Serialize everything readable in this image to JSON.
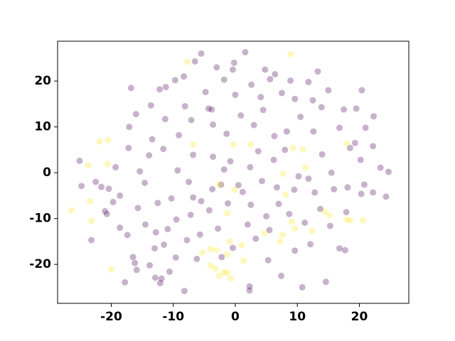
{
  "chart_data": {
    "type": "scatter",
    "xlim": [
      -28.65,
      27.97
    ],
    "ylim": [
      -28.5,
      28.7
    ],
    "xticks": [
      -20,
      -10,
      0,
      10,
      20
    ],
    "yticks": [
      -20,
      -10,
      0,
      10,
      20
    ],
    "alpha": 0.3,
    "series": [
      {
        "color": "#440154",
        "x": [
          -25.1,
          -24.8,
          -23.2,
          -17.8,
          -21.6,
          -20.4,
          -21,
          -19.7,
          -18.6,
          -17.4,
          -16.2,
          -16.5,
          -12.9,
          -11.9,
          -12.1,
          -10.6,
          -8.2,
          -13.8,
          -15.9,
          -13,
          -11.5,
          -17.1,
          -16,
          -16.8,
          -13.6,
          -12.2,
          -11.2,
          -9.7,
          -8.3,
          -6.5,
          -5.5,
          -3,
          -0.4,
          -0.2,
          0,
          2.6,
          4.8,
          6.4,
          7.5,
          8.9,
          11.8,
          12.5,
          15,
          17.5,
          19.5,
          20.4,
          22.3,
          21,
          19.3,
          18.5,
          20.2,
          22.2,
          23.4,
          24.7,
          24.3,
          22.2,
          20.3,
          18.1,
          15.9,
          13.7,
          15.3,
          16.8,
          17.7,
          14.6,
          10.8,
          7.4,
          5.3,
          2.3,
          2.3,
          -0.4,
          -2.8,
          -5.7,
          -7.8,
          -9.5,
          -12.5,
          -14.6,
          -15.4,
          -13.9,
          -11.6,
          -9.1,
          -7.1,
          -4.3,
          -3.6,
          -1.4,
          0.9,
          3,
          4.5,
          6.3,
          8.3,
          10.5,
          12.6,
          14,
          11.8,
          9.5,
          7,
          5,
          2.5,
          0.5,
          -1.8,
          -3.7,
          -5.5,
          -7.5,
          -9.3,
          -10.3,
          -6.8,
          -3.6,
          -0.8,
          2.4,
          4.3,
          6.2,
          8,
          10.2,
          12.8,
          15.5,
          16.8,
          13.9,
          9.6,
          4.1,
          -4.8,
          -8.1,
          -11.3,
          -13.4,
          -17.2,
          -19.3,
          -20.7,
          -18.6,
          -14.5,
          -10.9,
          -7.2,
          -4.2,
          -1.2,
          2,
          5.5,
          8.7,
          11.2,
          12.1,
          9.6,
          3.3,
          -2.2,
          -6.2,
          -9.6,
          -12.8,
          13.3,
          1.6,
          -1.8,
          5.6,
          -15.7,
          -6.8,
          1.2,
          6.7,
          3.7,
          -2.3,
          17.9,
          20.8,
          -22.5,
          -3.8
        ],
        "y": [
          2.6,
          -2.9,
          -14.7,
          -23.9,
          -3.1,
          -3.5,
          -8.4,
          -6.4,
          -5,
          -13.6,
          -19.7,
          -18.4,
          -22.9,
          -23.1,
          -24.1,
          -21.6,
          -25.8,
          -20.2,
          -21.2,
          -16.5,
          -15.7,
          10,
          12.8,
          18.5,
          14.7,
          18.2,
          18.7,
          20.2,
          21,
          24.3,
          26,
          23,
          22.5,
          24,
          17,
          19.2,
          22.5,
          21.5,
          17.4,
          20.1,
          19.8,
          15.8,
          18,
          13.8,
          14,
          18,
          12.3,
          9.8,
          6.5,
          5.4,
          2.8,
          5.8,
          1.1,
          0.2,
          -5.2,
          -4.3,
          -4.6,
          -3.2,
          -3.6,
          -7.9,
          -11.6,
          -16.5,
          -16.9,
          -23.8,
          -25,
          -22.5,
          -19.1,
          -24.8,
          -25.7,
          -16.4,
          -12.2,
          -13.5,
          -14.7,
          -10.2,
          -6.6,
          -2.2,
          0.3,
          3.8,
          5.2,
          8.2,
          11.5,
          14,
          10.5,
          8.5,
          12.5,
          10.4,
          13.7,
          8,
          9,
          12.2,
          9,
          4,
          -1.3,
          -3.7,
          -6.8,
          -9.5,
          -7,
          -2.7,
          0.7,
          -3.6,
          -6.2,
          -2,
          0.5,
          -5.6,
          3.9,
          3.5,
          2.5,
          1.2,
          -1.8,
          2.8,
          5,
          -0.8,
          -4.3,
          0,
          9.8,
          14.3,
          16.1,
          16.5,
          17.6,
          14.5,
          11.7,
          7.3,
          5.4,
          1.2,
          -9,
          -12,
          -11.3,
          -12.3,
          -9.2,
          -8.2,
          -6.7,
          -11.3,
          -12.5,
          -9,
          -10.9,
          -15.6,
          -17,
          -14.4,
          -18.4,
          -18.8,
          -18.5,
          -13,
          22.1,
          26.3,
          20.3,
          20.4,
          -7.7,
          -5.4,
          -4.2,
          -3.2,
          4.7,
          -2.6,
          -8.6,
          -2.6,
          -2,
          13.8
        ]
      },
      {
        "color": "#fde725",
        "x": [
          -26.4,
          -23.4,
          -23.2,
          -21.9,
          -20.5,
          -20.6,
          -20,
          -7.7,
          8.9,
          -6.8,
          -0.3,
          2.5,
          9.3,
          10.9,
          11.3,
          -2.6,
          -0.1,
          7.7,
          8.1,
          -1.3,
          9.1,
          9.6,
          12.4,
          7.2,
          7.6,
          4.7,
          -5.3,
          -4,
          -3,
          -0.9,
          1,
          -1.3,
          1.3,
          -4,
          -3.2,
          -1.8,
          -2.6,
          -0.7,
          -1.3,
          14.4,
          15.2,
          18,
          18.5,
          20.6,
          18,
          -23.7
        ],
        "y": [
          -8.2,
          -6.2,
          -10.5,
          6.8,
          7.1,
          1.9,
          -21.1,
          24.2,
          25.9,
          6.2,
          6.2,
          6.2,
          5.4,
          5.1,
          1.1,
          -2.6,
          -3.7,
          -0.2,
          -4.8,
          -8.8,
          -10.7,
          -12.2,
          -12.7,
          -15,
          -13.5,
          -13.2,
          -17.4,
          -16.6,
          -16.9,
          -15,
          -15.8,
          -17.8,
          -19.2,
          -20.3,
          -20.9,
          -21.7,
          -22.5,
          -23.1,
          -21.9,
          -8.5,
          -9.3,
          -10.2,
          -10.4,
          -10.4,
          6.4,
          1.6
        ]
      }
    ]
  }
}
